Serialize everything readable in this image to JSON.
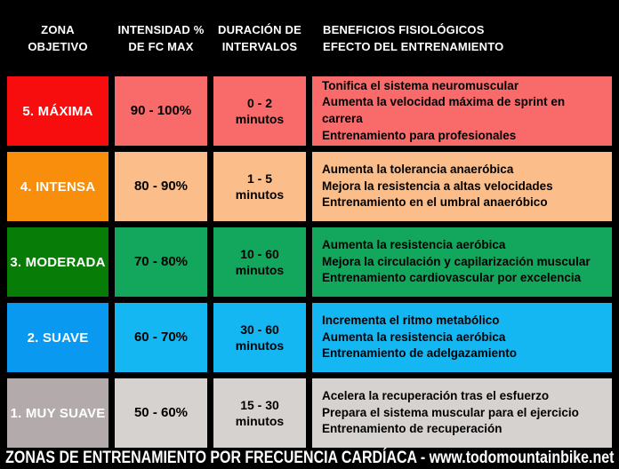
{
  "colors": {
    "background": "#000000",
    "header_text": "#ffffff",
    "zone_text": "#ffffff",
    "cell_text": "#000000",
    "footer_text": "#ffffff"
  },
  "table": {
    "headers": [
      {
        "line1": "ZONA",
        "line2": "OBJETIVO"
      },
      {
        "line1": "INTENSIDAD %",
        "line2": "DE FC MAX"
      },
      {
        "line1": "DURACIÓN DE",
        "line2": "INTERVALOS"
      },
      {
        "line1": "BENEFICIOS FISIOLÓGICOS",
        "line2": "EFECTO DEL ENTRENAMIENTO"
      }
    ],
    "rows": [
      {
        "zone": "5. MÁXIMA",
        "zone_color": "#f70d0d",
        "cell_color": "#f96a6a",
        "intensity": "90 - 100%",
        "duration_line1": "0 - 2",
        "duration_line2": "minutos",
        "benefits": [
          "Tonifica el sistema neuromuscular",
          "Aumenta la velocidad máxima de sprint en carrera",
          "Entrenamiento para profesionales"
        ]
      },
      {
        "zone": "4. INTENSA",
        "zone_color": "#f98e0c",
        "cell_color": "#fbbd8a",
        "intensity": "80 - 90%",
        "duration_line1": "1 - 5",
        "duration_line2": "minutos",
        "benefits": [
          "Aumenta la tolerancia anaeróbica",
          "Mejora la resistencia a altas velocidades",
          "Entrenamiento en el umbral anaeróbico"
        ]
      },
      {
        "zone": "3. MODERADA",
        "zone_color": "#077d07",
        "cell_color": "#12a75c",
        "intensity": "70 - 80%",
        "duration_line1": "10 - 60",
        "duration_line2": "minutos",
        "benefits": [
          "Aumenta la resistencia aeróbica",
          "Mejora la circulación y capilarización muscular",
          "Entrenamiento cardiovascular por excelencia"
        ]
      },
      {
        "zone": "2. SUAVE",
        "zone_color": "#0999f0",
        "cell_color": "#15b7f2",
        "intensity": "60 - 70%",
        "duration_line1": "30 - 60",
        "duration_line2": "minutos",
        "benefits": [
          "Incrementa el ritmo metabólico",
          "Aumenta la resistencia aeróbica",
          "Entrenamiento de adelgazamiento"
        ]
      },
      {
        "zone": "1. MUY SUAVE",
        "zone_color": "#b3abab",
        "cell_color": "#d6d2cf",
        "intensity": "50 - 60%",
        "duration_line1": "15 - 30",
        "duration_line2": "minutos",
        "benefits": [
          "Acelera la recuperación tras el esfuerzo",
          "Prepara el sistema muscular para el ejercicio",
          "Entrenamiento de recuperación"
        ]
      }
    ]
  },
  "footer": {
    "text": "ZONAS DE ENTRENAMIENTO POR FRECUENCIA CARDÍACA - www.todomountainbike.net"
  },
  "chart_data": {
    "type": "table",
    "title": "ZONAS DE ENTRENAMIENTO POR FRECUENCIA CARDÍACA",
    "source_note": "www.todomountainbike.net",
    "columns": [
      "ZONA OBJETIVO",
      "INTENSIDAD % DE FC MAX",
      "DURACIÓN DE INTERVALOS",
      "BENEFICIOS FISIOLÓGICOS / EFECTO DEL ENTRENAMIENTO"
    ],
    "rows": [
      [
        "5. MÁXIMA",
        "90 - 100%",
        "0 - 2 minutos",
        "Tonifica el sistema neuromuscular; Aumenta la velocidad máxima de sprint en carrera; Entrenamiento para profesionales"
      ],
      [
        "4. INTENSA",
        "80 - 90%",
        "1 - 5 minutos",
        "Aumenta la tolerancia anaeróbica; Mejora la resistencia a altas velocidades; Entrenamiento en el umbral anaeróbico"
      ],
      [
        "3. MODERADA",
        "70 - 80%",
        "10 - 60 minutos",
        "Aumenta la resistencia aeróbica; Mejora la circulación y capilarización muscular; Entrenamiento cardiovascular por excelencia"
      ],
      [
        "2. SUAVE",
        "60 - 70%",
        "30 - 60 minutos",
        "Incrementa el ritmo metabólico; Aumenta la resistencia aeróbica; Entrenamiento de adelgazamiento"
      ],
      [
        "1. MUY SUAVE",
        "50 - 60%",
        "15 - 30 minutos",
        "Acelera la recuperación tras el esfuerzo; Prepara el sistema muscular para el ejercicio; Entrenamiento de recuperación"
      ]
    ]
  }
}
